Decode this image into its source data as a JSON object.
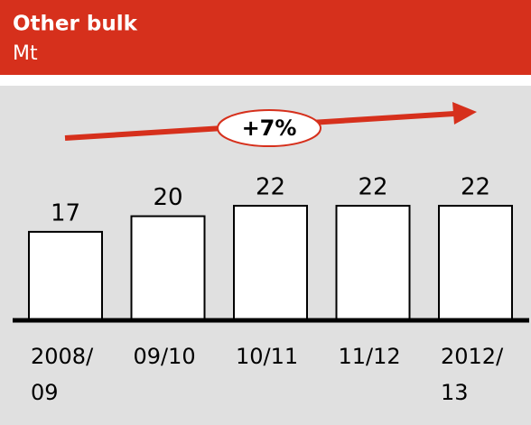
{
  "chart_data": {
    "type": "bar",
    "title": "Other bulk",
    "subtitle": "Mt",
    "categories": [
      "2008/\n09",
      "09/10",
      "10/11",
      "11/12",
      "2012/\n13"
    ],
    "values": [
      17,
      20,
      22,
      22,
      22
    ],
    "color": "#ffffff",
    "annotation": "+7%",
    "annotation_color": "#d6301c"
  }
}
